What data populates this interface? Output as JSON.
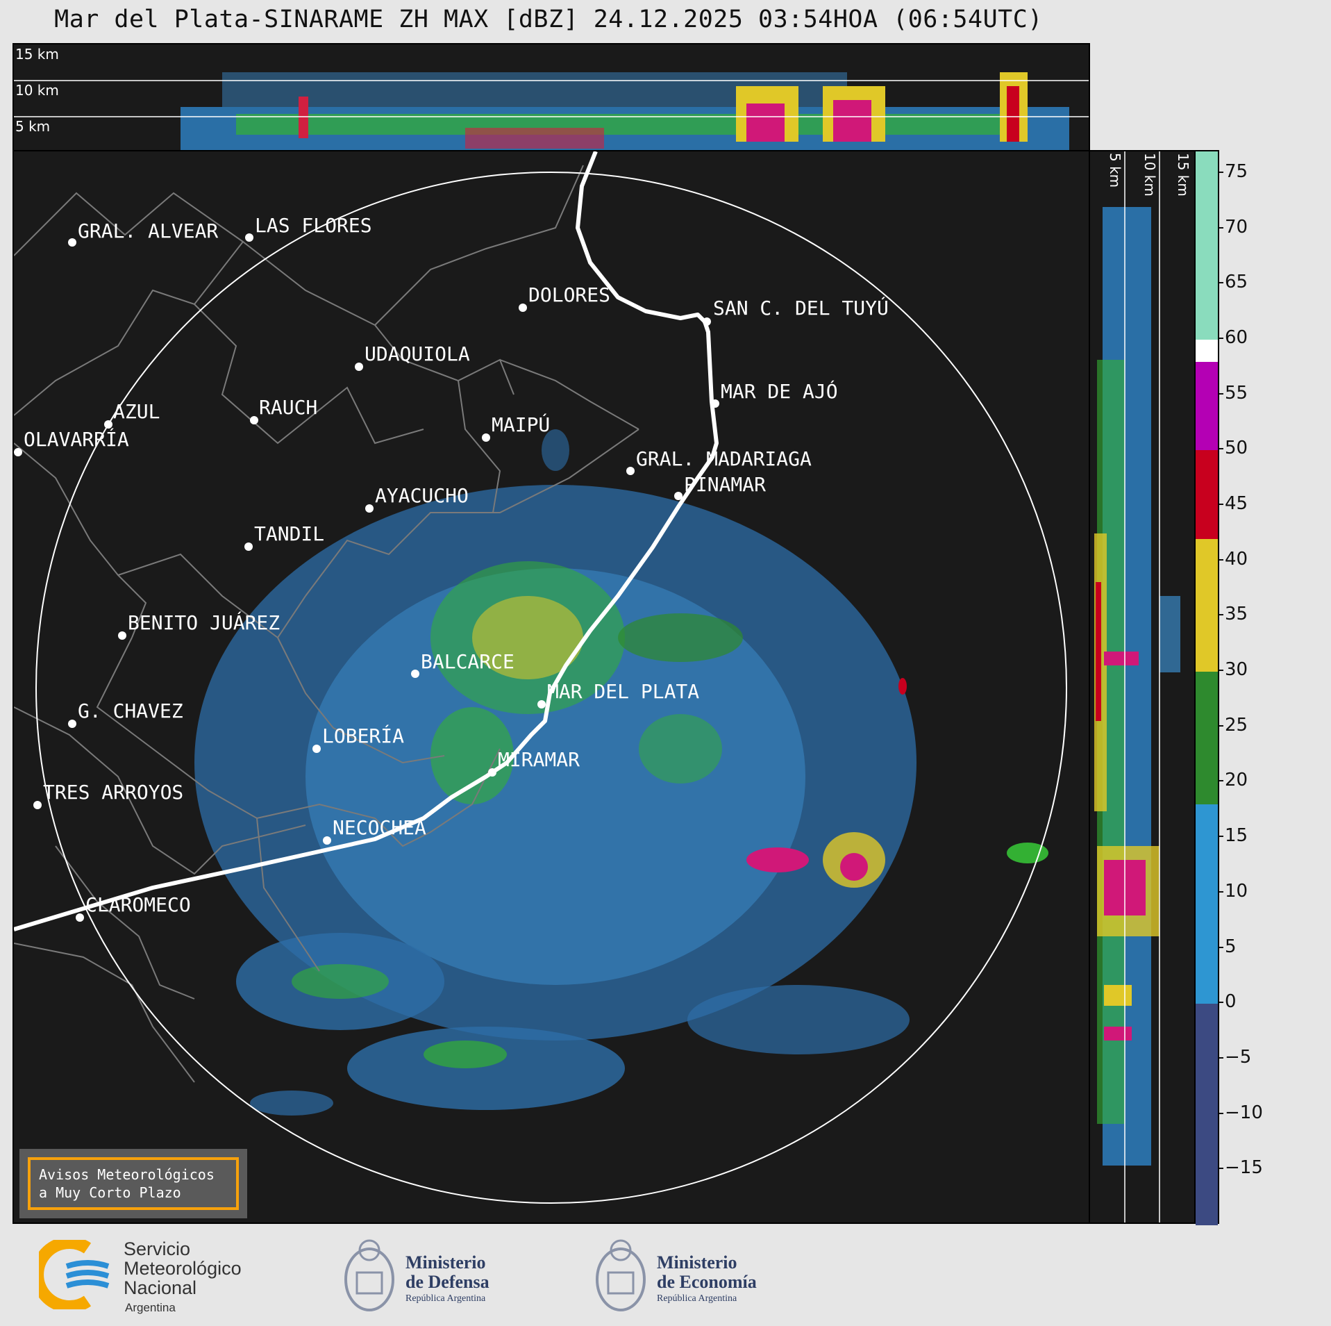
{
  "title": "Mar del Plata-SINARAME ZH MAX [dBZ] 24.12.2025 03:54HOA (06:54UTC)",
  "top_panel": {
    "height_labels": [
      "15 km",
      "10 km",
      "5 km"
    ]
  },
  "side_panel": {
    "height_labels": [
      "5 km",
      "10 km",
      "15 km"
    ]
  },
  "colorbar": {
    "ticks": [
      "75",
      "70",
      "65",
      "60",
      "55",
      "50",
      "45",
      "40",
      "35",
      "30",
      "25",
      "20",
      "15",
      "10",
      "5",
      "0",
      "−5",
      "−10",
      "−15"
    ],
    "range": [
      -20,
      77
    ],
    "segments": [
      {
        "from": 60,
        "to": 77,
        "color": "#8adcbd"
      },
      {
        "from": 58,
        "to": 60,
        "color": "#ffffff"
      },
      {
        "from": 50,
        "to": 58,
        "color": "#b400b4"
      },
      {
        "from": 42,
        "to": 50,
        "color": "#c8001e"
      },
      {
        "from": 30,
        "to": 42,
        "color": "#e0c828"
      },
      {
        "from": 18,
        "to": 30,
        "color": "#2e8a2e"
      },
      {
        "from": 0,
        "to": 18,
        "color": "#2e96d2"
      },
      {
        "from": -20,
        "to": 0,
        "color": "#3c4a82"
      }
    ]
  },
  "cities": [
    {
      "name": "GRAL. ALVEAR"
    },
    {
      "name": "LAS FLORES"
    },
    {
      "name": "DOLORES"
    },
    {
      "name": "SAN C. DEL TUYÚ"
    },
    {
      "name": "UDAQUIOLA"
    },
    {
      "name": "MAR DE AJÓ"
    },
    {
      "name": "RAUCH"
    },
    {
      "name": "AZUL"
    },
    {
      "name": "MAIPÚ"
    },
    {
      "name": "OLAVARRÍA"
    },
    {
      "name": "GRAL. MADARIAGA"
    },
    {
      "name": "PINAMAR"
    },
    {
      "name": "AYACUCHO"
    },
    {
      "name": "TANDIL"
    },
    {
      "name": "BENITO JUÁREZ"
    },
    {
      "name": "BALCARCE"
    },
    {
      "name": "MAR DEL PLATA"
    },
    {
      "name": "G. CHAVEZ"
    },
    {
      "name": "LOBERÍA"
    },
    {
      "name": "MIRAMAR"
    },
    {
      "name": "TRES ARROYOS"
    },
    {
      "name": "NECOCHEA"
    },
    {
      "name": "CLAROMECO"
    }
  ],
  "aviso": "Avisos Meteorológicos\na Muy Corto Plazo",
  "logos": {
    "smn": {
      "line1": "Servicio",
      "line2": "Meteorológico",
      "line3": "Nacional",
      "line4": "Argentina"
    },
    "defensa": {
      "line1": "Ministerio",
      "line2": "de Defensa",
      "sub": "República Argentina"
    },
    "economia": {
      "line1": "Ministerio",
      "line2": "de Economía",
      "sub": "República Argentina"
    }
  }
}
